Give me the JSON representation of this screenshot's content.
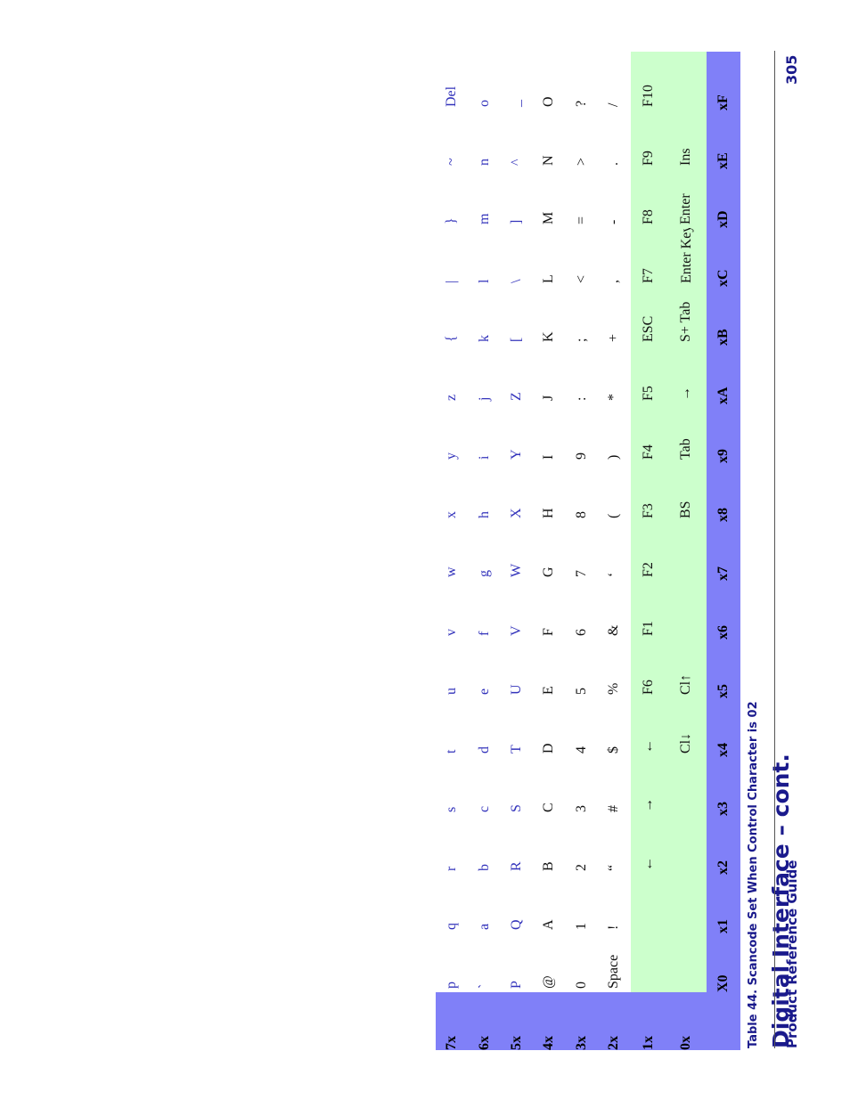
{
  "header": {
    "title": "Digital Interface – cont.",
    "table_caption": "Table 44. Scancode Set When Control Character is 02"
  },
  "table": {
    "columns": [
      "X0",
      "x1",
      "x2",
      "x3",
      "x4",
      "x5",
      "x6",
      "x7",
      "x8",
      "x9",
      "xA",
      "xB",
      "xC",
      "xD",
      "xE",
      "xF"
    ],
    "rows": [
      {
        "label": "7x",
        "cells": [
          "p",
          "q",
          "r",
          "s",
          "t",
          "u",
          "v",
          "w",
          "x",
          "y",
          "z",
          "{",
          "|",
          "}",
          "~",
          "Del"
        ]
      },
      {
        "label": "6x",
        "cells": [
          "`",
          "a",
          "b",
          "c",
          "d",
          "e",
          "f",
          "g",
          "h",
          "i",
          "j",
          "k",
          "l",
          "m",
          "n",
          "o"
        ]
      },
      {
        "label": "5x",
        "cells": [
          "P",
          "Q",
          "R",
          "S",
          "T",
          "U",
          "V",
          "W",
          "X",
          "Y",
          "Z",
          "[",
          "\\",
          "]",
          "^",
          "_"
        ]
      },
      {
        "label": "4x",
        "cells": [
          "@",
          "A",
          "B",
          "C",
          "D",
          "E",
          "F",
          "G",
          "H",
          "I",
          "J",
          "K",
          "L",
          "M",
          "N",
          "O"
        ]
      },
      {
        "label": "3x",
        "cells": [
          "0",
          "1",
          "2",
          "3",
          "4",
          "5",
          "6",
          "7",
          "8",
          "9",
          ":",
          ";",
          "<",
          "=",
          ">",
          "?"
        ]
      },
      {
        "label": "2x",
        "cells": [
          "Space",
          "!",
          "“",
          "#",
          "$",
          "%",
          "&",
          "‘",
          "(",
          ")",
          "*",
          "+",
          ",",
          "-",
          ".",
          "/"
        ]
      },
      {
        "label": "1x",
        "cells": [
          "",
          "",
          "←",
          "→",
          "←",
          "F6",
          "F1",
          "F2",
          "F3",
          "F4",
          "F5",
          "ESC",
          "F7",
          "F8",
          "F9",
          "F10"
        ]
      },
      {
        "label": "0x",
        "cells": [
          "",
          "",
          "",
          "",
          "Cl↓",
          "Cl↑",
          "",
          "",
          "BS",
          "Tab",
          "→",
          "S+ Tab",
          "Enter Keypd",
          "Enter",
          "Ins",
          ""
        ]
      }
    ]
  },
  "footer": {
    "left": "Product Reference Guide",
    "page_number": "305"
  },
  "colors": {
    "header_bg": "#8080f8",
    "control_rows_bg": "#ccffcc",
    "title_color": "#1a1a8c",
    "lowercase_text": "#3333bb"
  }
}
